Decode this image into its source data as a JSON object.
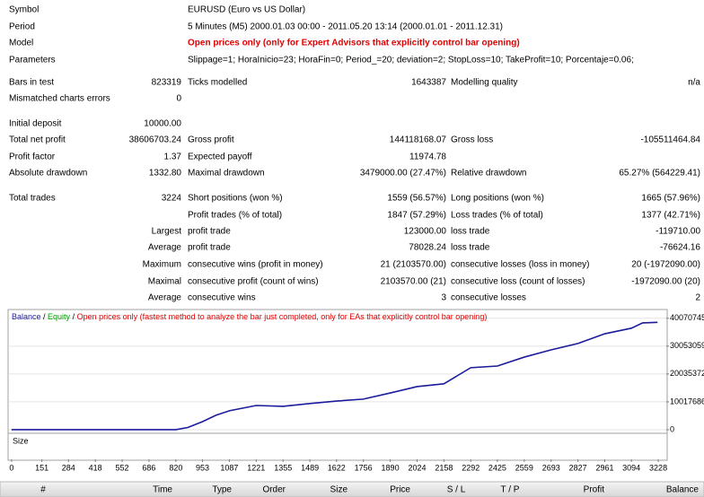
{
  "info": [
    [
      "Symbol",
      "EURUSD (Euro vs US Dollar)"
    ],
    [
      "Period",
      "5 Minutes (M5) 2000.01.03 00:00 - 2011.05.20 13:14 (2000.01.01 - 2011.12.31)"
    ],
    [
      "Model",
      "Open prices only (only for Expert Advisors that explicitly control bar opening)"
    ],
    [
      "Parameters",
      "Slippage=1; HoraInicio=23; HoraFin=0; Period_=20; deviation=2; StopLoss=10; TakeProfit=10; Porcentaje=0.06;"
    ]
  ],
  "stats": [
    [
      "Bars in test",
      "823319",
      "Ticks modelled",
      "1643387",
      "Modelling quality",
      "n/a"
    ],
    [
      "Mismatched charts errors",
      "0",
      null,
      null,
      null,
      null
    ],
    [
      "Initial deposit",
      "10000.00",
      null,
      null,
      null,
      null
    ],
    [
      "Total net profit",
      "38606703.24",
      "Gross profit",
      "144118168.07",
      "Gross loss",
      "-105511464.84"
    ],
    [
      "Profit factor",
      "1.37",
      "Expected payoff",
      "11974.78",
      null,
      null
    ],
    [
      "Absolute drawdown",
      "1332.80",
      "Maximal drawdown",
      "3479000.00 (27.47%)",
      "Relative drawdown",
      "65.27% (564229.41)"
    ],
    [
      "Total trades",
      "3224",
      "Short positions (won %)",
      "1559 (56.57%)",
      "Long positions (won %)",
      "1665 (57.96%)"
    ],
    [
      null,
      null,
      "Profit trades (% of total)",
      "1847 (57.29%)",
      "Loss trades (% of total)",
      "1377 (42.71%)"
    ],
    [
      null,
      "Largest",
      "profit trade",
      "123000.00",
      "loss trade",
      "-119710.00"
    ],
    [
      null,
      "Average",
      "profit trade",
      "78028.24",
      "loss trade",
      "-76624.16"
    ],
    [
      null,
      "Maximum",
      "consecutive wins (profit in money)",
      "21 (2103570.00)",
      "consecutive losses (loss in money)",
      "20 (-1972090.00)"
    ],
    [
      null,
      "Maximal",
      "consecutive profit (count of wins)",
      "2103570.00 (21)",
      "consecutive loss (count of losses)",
      "-1972090.00 (20)"
    ],
    [
      null,
      "Average",
      "consecutive wins",
      "3",
      "consecutive losses",
      "2"
    ]
  ],
  "chart_data": {
    "type": "line",
    "equity_label": "Equity",
    "model_note": "Open prices only (fastest method to analyze the bar just completed, only for EAs that explicitly control bar opening)",
    "size_label": "Size",
    "series": [
      {
        "name": "Balance",
        "color": "#1c1c9c",
        "x": [
          0,
          820,
          880,
          953,
          1020,
          1087,
          1221,
          1355,
          1489,
          1622,
          1756,
          1890,
          2024,
          2158,
          2292,
          2425,
          2559,
          2693,
          2827,
          2961,
          3094,
          3150,
          3224
        ],
        "values": [
          10000,
          10000,
          800000,
          2900000,
          5200000,
          6800000,
          8700000,
          8400000,
          9400000,
          10300000,
          11000000,
          13200000,
          15500000,
          16500000,
          22300000,
          22900000,
          26100000,
          28700000,
          31000000,
          34500000,
          36500000,
          38400000,
          38616703
        ]
      }
    ],
    "equity_color": "#00a000",
    "xlim": [
      -13,
      3268
    ],
    "xticks": [
      0,
      151,
      284,
      418,
      552,
      686,
      820,
      953,
      1087,
      1221,
      1355,
      1489,
      1622,
      1756,
      1890,
      2024,
      2158,
      2292,
      2425,
      2559,
      2693,
      2827,
      2961,
      3094,
      3228
    ],
    "ylim": [
      -1300000,
      42900000
    ],
    "yticks": [
      0,
      10017686,
      20035372,
      30053059,
      40070745
    ],
    "grid": true
  },
  "trades_header": [
    "#",
    "Time",
    "Type",
    "Order",
    "Size",
    "Price",
    "S / L",
    "T / P",
    "Profit",
    "Balance"
  ]
}
